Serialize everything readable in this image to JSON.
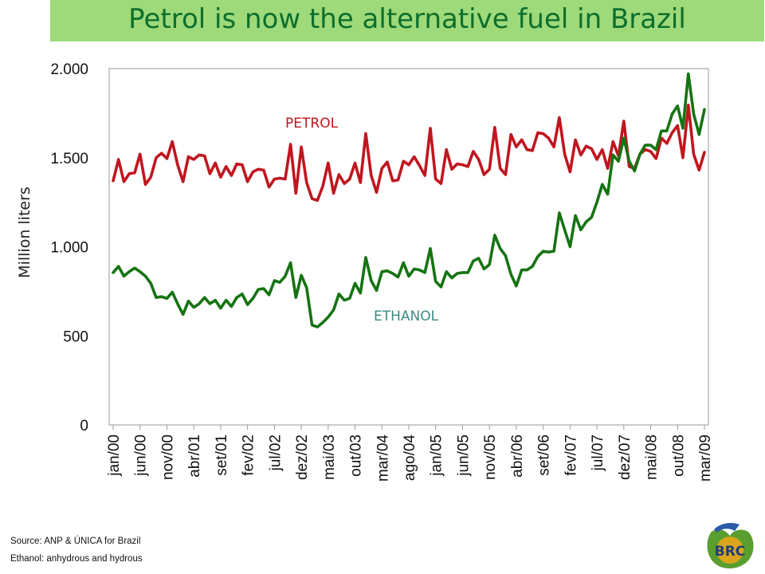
{
  "title": "Petrol is now the alternative fuel in Brazil",
  "source_lines": [
    "Source: ANP & ÚNICA   for Brazil",
    "Ethanol: anhydrous and hydrous"
  ],
  "logo": {
    "text": "BRC",
    "colors": {
      "green": "#5a9e2f",
      "blue": "#2a5aa8",
      "gold": "#d8a51d"
    }
  },
  "colors": {
    "banner": "#9ed97a",
    "title": "#0c6f2c",
    "petrol": "#c0161f",
    "ethanol": "#167313",
    "ethanol_label": "#3a8a84"
  },
  "chart_data": {
    "type": "line",
    "title": "",
    "xlabel": "",
    "ylabel": "Million liters",
    "ylim": [
      0,
      2000
    ],
    "yticks": [
      0,
      500,
      1000,
      1500,
      2000
    ],
    "ytick_labels": [
      "0",
      "500",
      "1.000",
      "1.500",
      "2.000"
    ],
    "grid": false,
    "x_start": "jan/00",
    "x_end": "mar/09",
    "tick_labels": [
      "jan/00",
      "jun/00",
      "nov/00",
      "abr/01",
      "set/01",
      "fev/02",
      "jul/02",
      "dez/02",
      "mai/03",
      "out/03",
      "mar/04",
      "ago/04",
      "jan/05",
      "jun/05",
      "nov/05",
      "abr/06",
      "set/06",
      "fev/07",
      "jul/07",
      "dez/07",
      "mai/08",
      "out/08",
      "mar/09"
    ],
    "annotations": [
      {
        "text": "PETROL",
        "series": "PETROL"
      },
      {
        "text": "ETHANOL",
        "series": "ETHANOL"
      }
    ],
    "series": [
      {
        "name": "PETROL",
        "color": "#c0161f",
        "values": [
          1370,
          1490,
          1365,
          1410,
          1415,
          1520,
          1350,
          1390,
          1500,
          1525,
          1495,
          1590,
          1460,
          1365,
          1505,
          1490,
          1515,
          1510,
          1410,
          1470,
          1390,
          1450,
          1400,
          1465,
          1460,
          1365,
          1420,
          1435,
          1430,
          1335,
          1380,
          1385,
          1380,
          1575,
          1300,
          1560,
          1360,
          1270,
          1260,
          1340,
          1470,
          1300,
          1405,
          1355,
          1380,
          1470,
          1360,
          1635,
          1400,
          1305,
          1440,
          1475,
          1370,
          1375,
          1480,
          1460,
          1505,
          1455,
          1400,
          1665,
          1380,
          1355,
          1545,
          1435,
          1465,
          1460,
          1450,
          1535,
          1490,
          1405,
          1435,
          1670,
          1440,
          1405,
          1630,
          1560,
          1600,
          1545,
          1540,
          1640,
          1635,
          1610,
          1560,
          1725,
          1520,
          1420,
          1600,
          1515,
          1565,
          1550,
          1490,
          1545,
          1440,
          1590,
          1510,
          1705,
          1450,
          1440,
          1520,
          1545,
          1535,
          1495,
          1610,
          1580,
          1640,
          1680,
          1500,
          1795,
          1520,
          1430,
          1530
        ]
      },
      {
        "name": "ETHANOL",
        "color": "#167313",
        "values": [
          855,
          890,
          835,
          860,
          880,
          860,
          835,
          795,
          715,
          720,
          710,
          745,
          680,
          620,
          695,
          660,
          680,
          715,
          680,
          700,
          655,
          700,
          665,
          715,
          735,
          675,
          710,
          760,
          765,
          730,
          810,
          800,
          835,
          910,
          715,
          840,
          770,
          560,
          550,
          575,
          605,
          645,
          735,
          700,
          710,
          795,
          740,
          940,
          810,
          755,
          860,
          865,
          850,
          830,
          910,
          835,
          875,
          870,
          855,
          990,
          805,
          775,
          860,
          825,
          850,
          855,
          855,
          920,
          935,
          875,
          900,
          1065,
          990,
          950,
          845,
          780,
          870,
          870,
          890,
          945,
          975,
          970,
          975,
          1190,
          1095,
          1000,
          1175,
          1095,
          1140,
          1165,
          1250,
          1350,
          1295,
          1515,
          1480,
          1610,
          1480,
          1425,
          1520,
          1570,
          1570,
          1545,
          1650,
          1650,
          1745,
          1790,
          1665,
          1970,
          1745,
          1630,
          1770
        ]
      }
    ]
  }
}
